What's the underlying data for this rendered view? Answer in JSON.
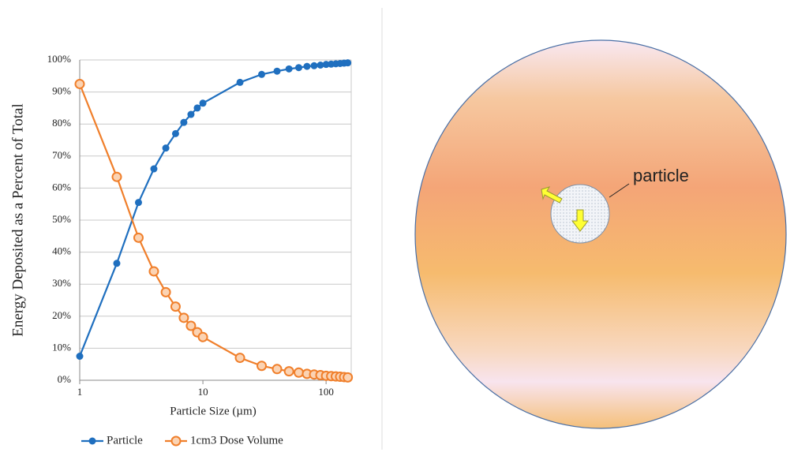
{
  "chart_data": {
    "type": "line",
    "x_label": "Particle Size (µm)",
    "y_label": "Energy  Deposited  as a  Percent  of Total",
    "x": [
      1,
      2,
      3,
      4,
      5,
      6,
      7,
      8,
      9,
      10,
      20,
      30,
      40,
      50,
      60,
      70,
      80,
      90,
      100,
      110,
      120,
      130,
      140,
      150
    ],
    "series": [
      {
        "name": "Particle",
        "color": "#1f6fbf",
        "marker": "filled",
        "values": [
          7.5,
          36.5,
          55.5,
          66,
          72.5,
          77,
          80.5,
          83,
          85,
          86.5,
          93,
          95.5,
          96.5,
          97.2,
          97.6,
          98,
          98.2,
          98.4,
          98.6,
          98.7,
          98.8,
          98.9,
          99,
          99.1
        ]
      },
      {
        "name": "1cm3 Dose Volume",
        "color": "#f07f2b",
        "marker": "hollow",
        "values": [
          92.5,
          63.5,
          44.5,
          34,
          27.5,
          23,
          19.5,
          17,
          15,
          13.5,
          7,
          4.5,
          3.5,
          2.8,
          2.4,
          2,
          1.8,
          1.6,
          1.4,
          1.3,
          1.2,
          1.1,
          1.0,
          0.9
        ]
      }
    ],
    "xscale": "log",
    "xlim": [
      1,
      160
    ],
    "xticks": [
      1,
      10,
      100
    ],
    "ylim": [
      0,
      100
    ],
    "yticks": [
      {
        "value": 0,
        "label": "0%"
      },
      {
        "value": 10,
        "label": "10%"
      },
      {
        "value": 20,
        "label": "20%"
      },
      {
        "value": 30,
        "label": "30%"
      },
      {
        "value": 40,
        "label": "40%"
      },
      {
        "value": 50,
        "label": "50%"
      },
      {
        "value": 60,
        "label": "60%"
      },
      {
        "value": 70,
        "label": "70%"
      },
      {
        "value": 80,
        "label": "80%"
      },
      {
        "value": 90,
        "label": "90%"
      },
      {
        "value": 100,
        "label": "100%"
      }
    ],
    "grid": true,
    "legend": "bottom"
  },
  "diagram": {
    "label": "particle"
  }
}
